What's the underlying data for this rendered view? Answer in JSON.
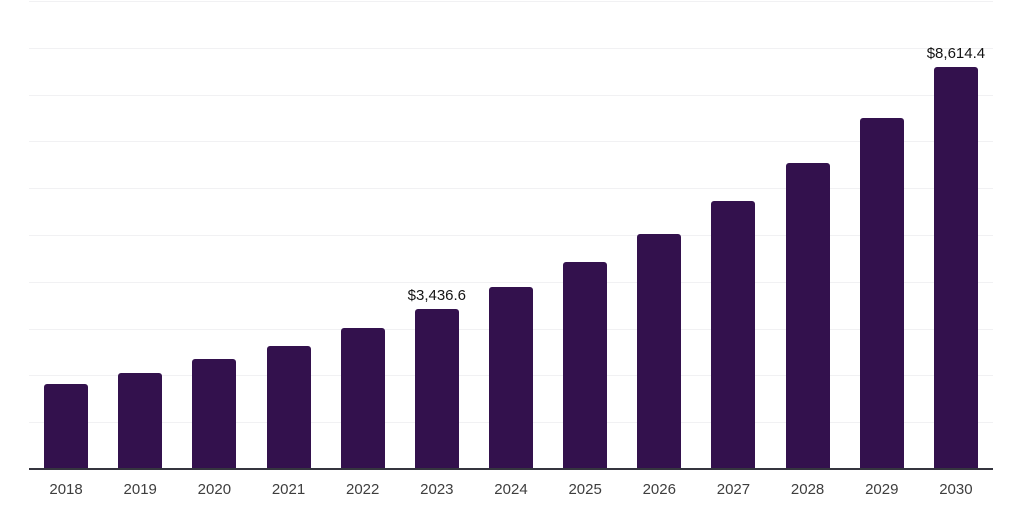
{
  "chart_data": {
    "type": "bar",
    "title": "",
    "xlabel": "",
    "ylabel": "",
    "categories": [
      "2018",
      "2019",
      "2020",
      "2021",
      "2022",
      "2023",
      "2024",
      "2025",
      "2026",
      "2027",
      "2028",
      "2029",
      "2030"
    ],
    "values": [
      1835,
      2065,
      2370,
      2655,
      3030,
      3436.6,
      3905,
      4435,
      5045,
      5740,
      6565,
      7520,
      8614.4
    ],
    "ylim": [
      0,
      10000
    ],
    "gridline_interval": 1000,
    "grid": "horizontal-only",
    "legend_position": "none",
    "y_tick_labels_visible": false,
    "annotations": [
      {
        "category": "2023",
        "text": "$3,436.6"
      },
      {
        "category": "2030",
        "text": "$8,614.4"
      }
    ],
    "colors": {
      "bar": "#33114d",
      "gridline": "#f1f1f3",
      "axis_line": "#35353f",
      "tick_label": "#3e3e3e",
      "value_label": "#141414",
      "background": "#ffffff"
    }
  }
}
